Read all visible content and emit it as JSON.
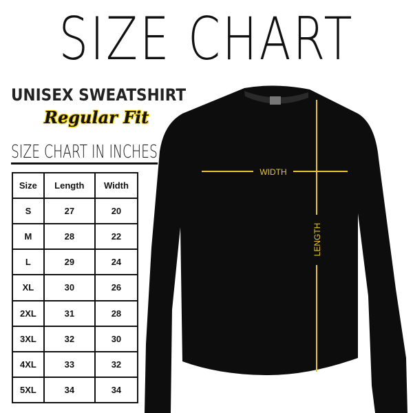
{
  "title": "SIZE CHART",
  "product": "UNISEX SWEATSHIRT",
  "fit": "Regular Fit",
  "table_caption": "SIZE CHART IN INCHES",
  "table": {
    "headers": [
      "Size",
      "Length",
      "Width"
    ],
    "rows": [
      [
        "S",
        "27",
        "20"
      ],
      [
        "M",
        "28",
        "22"
      ],
      [
        "L",
        "29",
        "24"
      ],
      [
        "XL",
        "30",
        "26"
      ],
      [
        "2XL",
        "31",
        "28"
      ],
      [
        "3XL",
        "32",
        "30"
      ],
      [
        "4XL",
        "33",
        "32"
      ],
      [
        "5XL",
        "34",
        "34"
      ]
    ]
  },
  "diagram": {
    "width_label": "WIDTH",
    "length_label": "LENGTH",
    "line_color": "#e8c830",
    "garment_color": "#0d0d0d"
  }
}
